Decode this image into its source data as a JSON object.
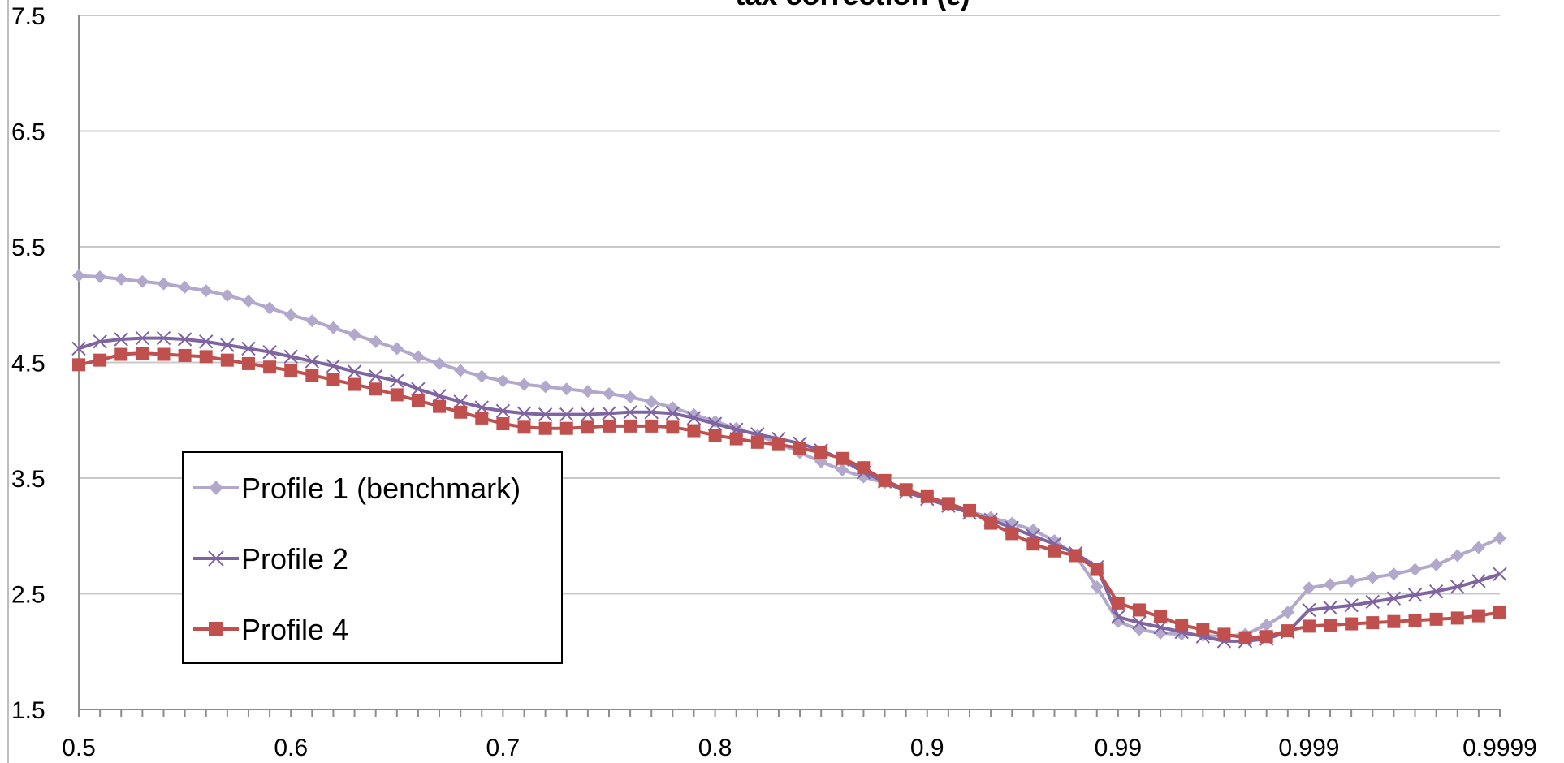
{
  "chart_data": {
    "type": "line",
    "title": "tax correction (ε)",
    "ylim": [
      1.5,
      7.5
    ],
    "yticks": [
      "7.5",
      "6.5",
      "5.5",
      "4.5",
      "3.5",
      "2.5",
      "1.5"
    ],
    "yticks_values": [
      7.5,
      6.5,
      5.5,
      4.5,
      3.5,
      2.5,
      1.5
    ],
    "x_tick_labels": [
      "0.5",
      "0.6",
      "0.7",
      "0.8",
      "0.9",
      "0.99",
      "0.999",
      "0.9999"
    ],
    "grid": "horizontal",
    "legend_position": "lower-left",
    "x": [
      "0.50",
      "0.51",
      "0.52",
      "0.53",
      "0.54",
      "0.55",
      "0.56",
      "0.57",
      "0.58",
      "0.59",
      "0.60",
      "0.61",
      "0.62",
      "0.63",
      "0.64",
      "0.65",
      "0.66",
      "0.67",
      "0.68",
      "0.69",
      "0.70",
      "0.71",
      "0.72",
      "0.73",
      "0.74",
      "0.75",
      "0.76",
      "0.77",
      "0.78",
      "0.79",
      "0.80",
      "0.81",
      "0.82",
      "0.83",
      "0.84",
      "0.85",
      "0.86",
      "0.87",
      "0.88",
      "0.89",
      "0.90",
      "0.91",
      "0.92",
      "0.93",
      "0.94",
      "0.95",
      "0.96",
      "0.97",
      "0.98",
      "0.99",
      "0.991",
      "0.992",
      "0.993",
      "0.994",
      "0.995",
      "0.996",
      "0.997",
      "0.998",
      "0.999",
      "0.9991",
      "0.9992",
      "0.9993",
      "0.9994",
      "0.9995",
      "0.9996",
      "0.9997",
      "0.9998",
      "0.9999"
    ],
    "series": [
      {
        "name": "Profile 1 (benchmark)",
        "color": "#b2a8cc",
        "marker": "diamond",
        "values": [
          5.25,
          5.24,
          5.22,
          5.2,
          5.18,
          5.15,
          5.12,
          5.08,
          5.03,
          4.97,
          4.91,
          4.86,
          4.8,
          4.74,
          4.68,
          4.62,
          4.55,
          4.49,
          4.43,
          4.38,
          4.34,
          4.31,
          4.29,
          4.27,
          4.25,
          4.23,
          4.2,
          4.16,
          4.11,
          4.05,
          3.99,
          3.93,
          3.87,
          3.8,
          3.72,
          3.64,
          3.57,
          3.51,
          3.46,
          3.4,
          3.34,
          3.27,
          3.21,
          3.16,
          3.11,
          3.05,
          2.96,
          2.83,
          2.56,
          2.26,
          2.19,
          2.16,
          2.15,
          2.14,
          2.13,
          2.15,
          2.23,
          2.34,
          2.55,
          2.58,
          2.61,
          2.64,
          2.67,
          2.71,
          2.75,
          2.83,
          2.9,
          2.98
        ]
      },
      {
        "name": "Profile 2",
        "color": "#7f64a2",
        "marker": "x",
        "values": [
          4.62,
          4.68,
          4.7,
          4.71,
          4.71,
          4.7,
          4.68,
          4.65,
          4.62,
          4.59,
          4.55,
          4.51,
          4.47,
          4.42,
          4.38,
          4.34,
          4.27,
          4.21,
          4.16,
          4.11,
          4.08,
          4.06,
          4.05,
          4.05,
          4.05,
          4.06,
          4.07,
          4.07,
          4.06,
          4.02,
          3.97,
          3.92,
          3.88,
          3.84,
          3.8,
          3.74,
          3.66,
          3.55,
          3.47,
          3.38,
          3.32,
          3.26,
          3.2,
          3.14,
          3.07,
          3.0,
          2.93,
          2.85,
          2.73,
          2.3,
          2.25,
          2.21,
          2.17,
          2.13,
          2.09,
          2.09,
          2.11,
          2.17,
          2.36,
          2.38,
          2.4,
          2.43,
          2.46,
          2.49,
          2.52,
          2.56,
          2.61,
          2.67
        ]
      },
      {
        "name": "Profile 4",
        "color": "#c0504d",
        "marker": "square",
        "values": [
          4.48,
          4.52,
          4.57,
          4.58,
          4.57,
          4.56,
          4.55,
          4.52,
          4.49,
          4.46,
          4.43,
          4.39,
          4.35,
          4.31,
          4.27,
          4.22,
          4.17,
          4.12,
          4.07,
          4.02,
          3.97,
          3.94,
          3.93,
          3.93,
          3.94,
          3.95,
          3.95,
          3.95,
          3.94,
          3.91,
          3.87,
          3.84,
          3.81,
          3.79,
          3.76,
          3.72,
          3.67,
          3.59,
          3.48,
          3.4,
          3.34,
          3.28,
          3.22,
          3.11,
          3.02,
          2.93,
          2.87,
          2.83,
          2.71,
          2.42,
          2.36,
          2.3,
          2.23,
          2.19,
          2.15,
          2.12,
          2.13,
          2.18,
          2.22,
          2.23,
          2.24,
          2.25,
          2.26,
          2.27,
          2.28,
          2.29,
          2.31,
          2.34
        ]
      }
    ]
  }
}
